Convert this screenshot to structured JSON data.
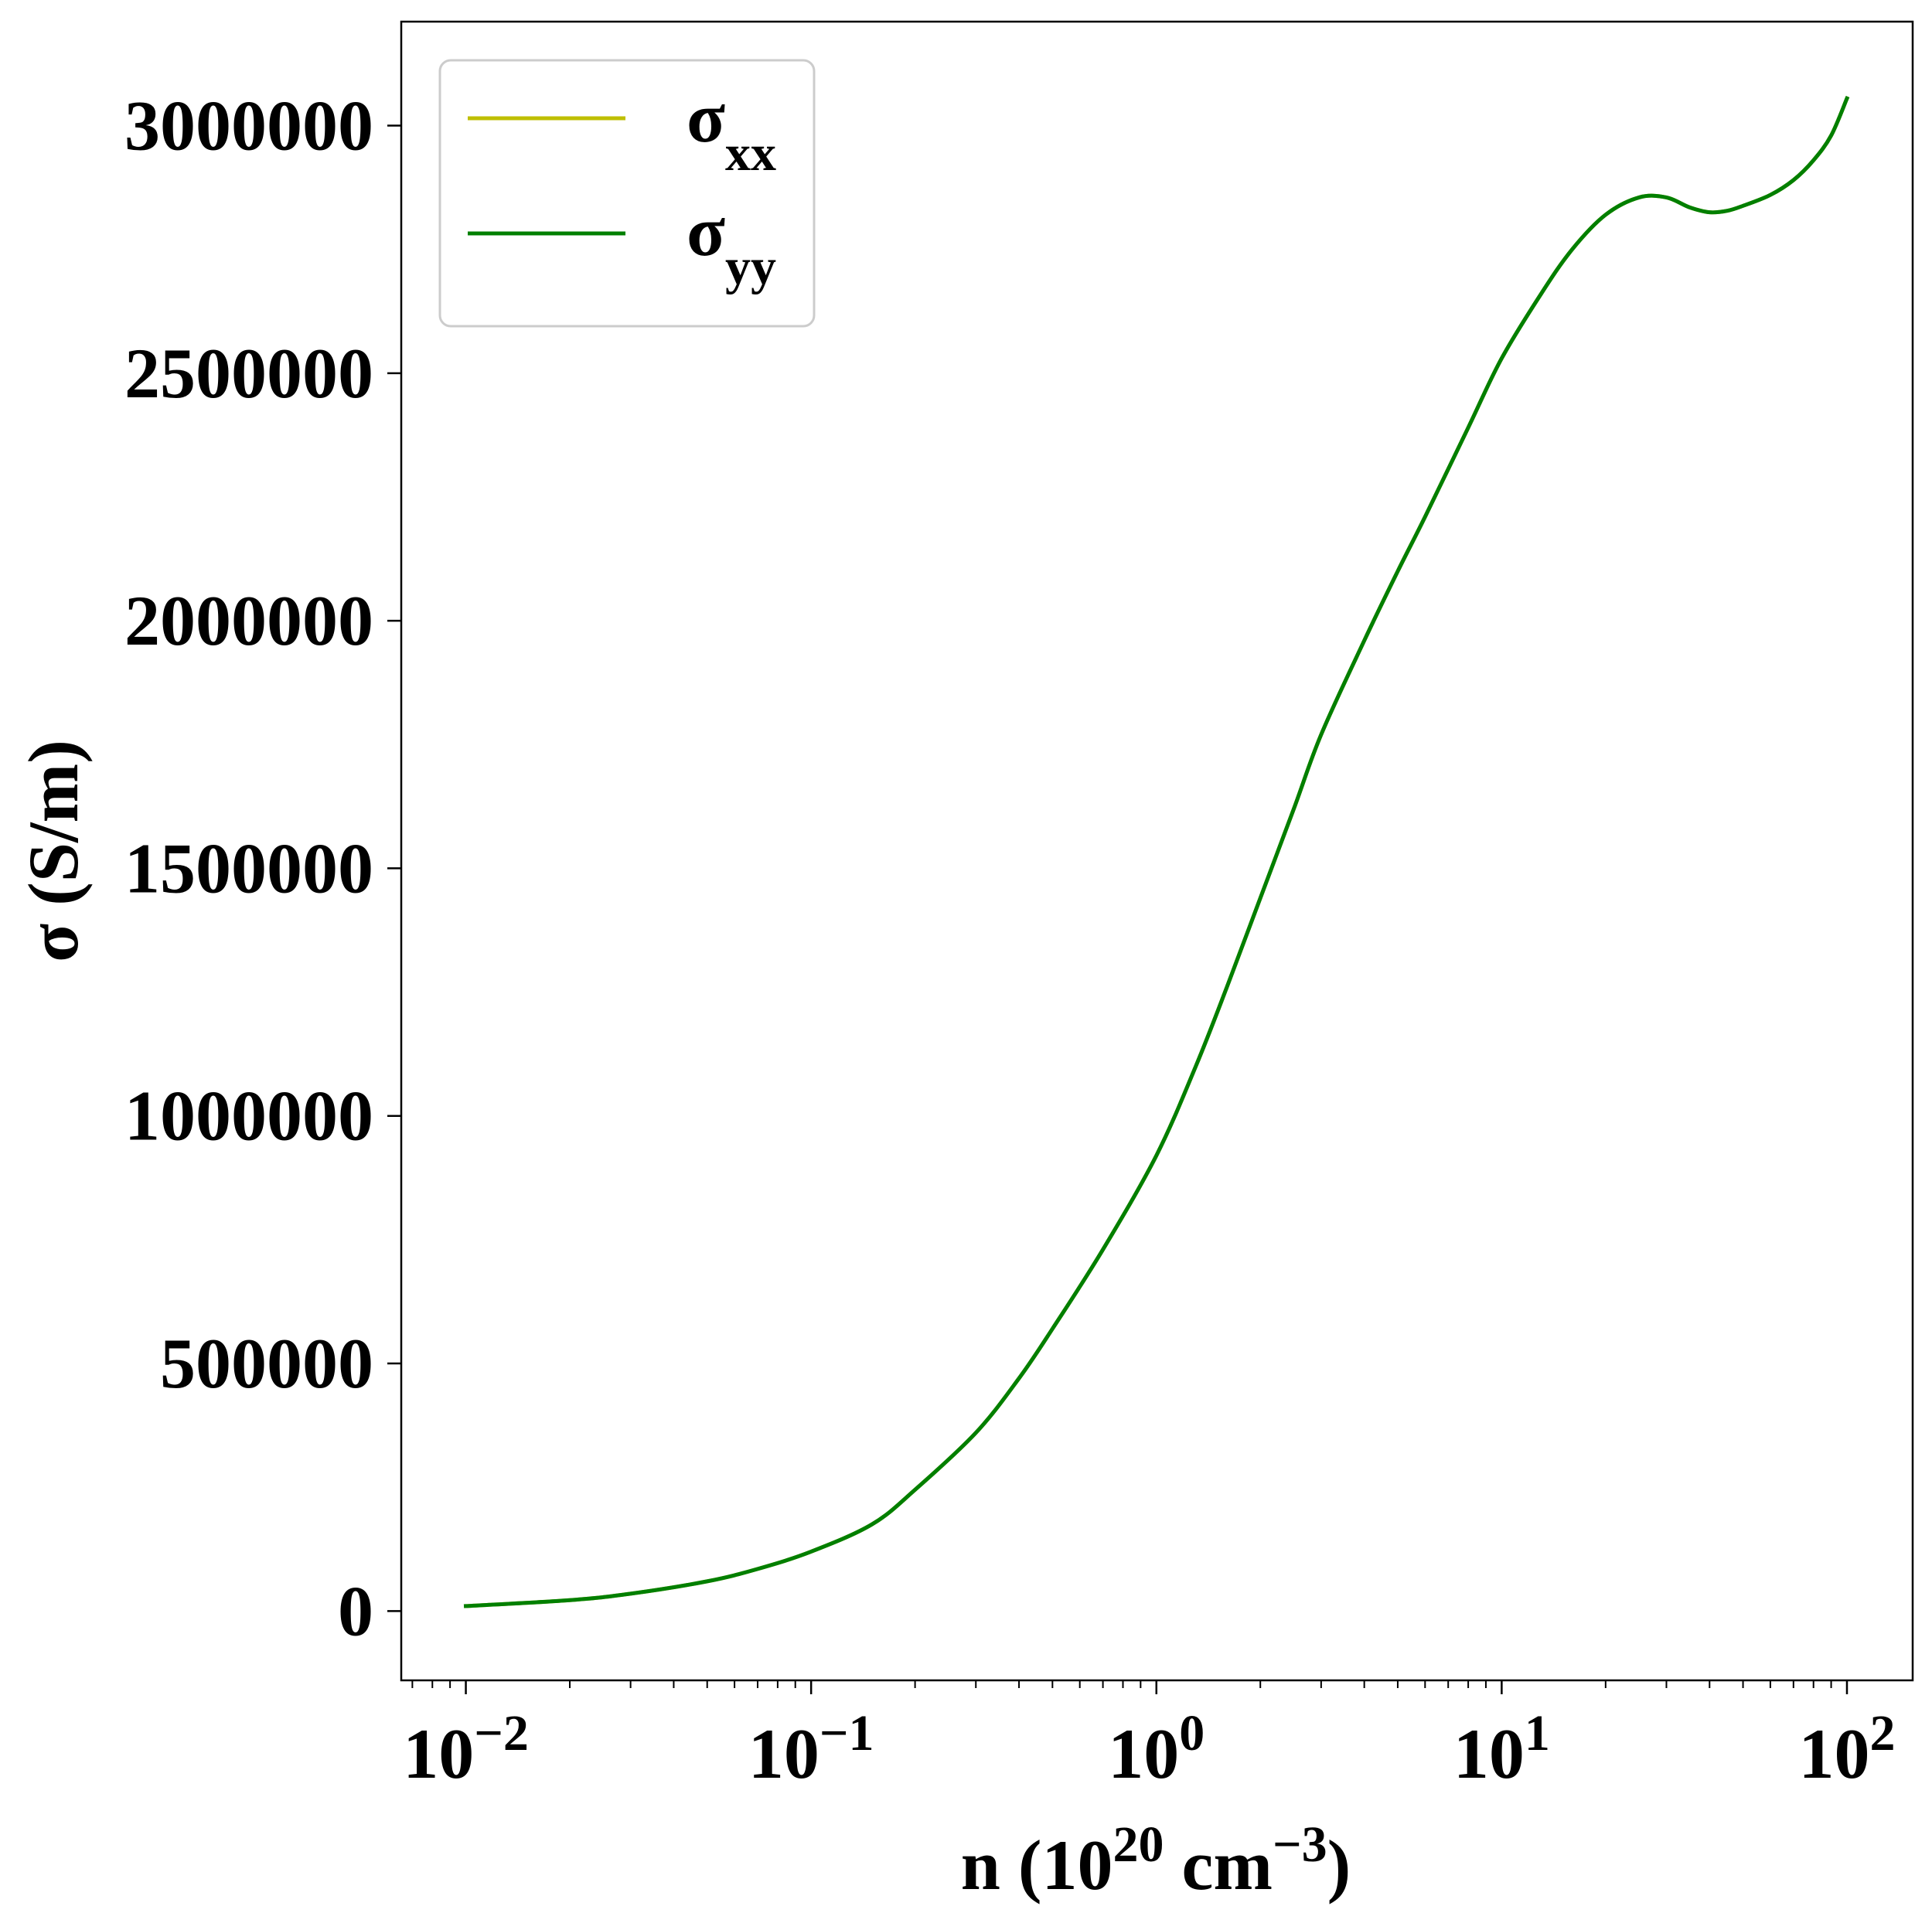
{
  "chart_data": {
    "type": "line",
    "title": "",
    "xlabel": {
      "base": "n (10",
      "exp1": "20",
      "mid": " cm",
      "exp2": "−3",
      "end": ")"
    },
    "ylabel": "σ (S/m)",
    "x_scale": "log",
    "xlim": [
      0.0065,
      155
    ],
    "ylim": [
      -140000,
      3210000
    ],
    "x_ticks": [
      {
        "value": 0.01,
        "base": "10",
        "exp": "−2"
      },
      {
        "value": 0.1,
        "base": "10",
        "exp": "−1"
      },
      {
        "value": 1,
        "base": "10",
        "exp": "0"
      },
      {
        "value": 10,
        "base": "10",
        "exp": "1"
      },
      {
        "value": 100,
        "base": "10",
        "exp": "2"
      }
    ],
    "y_ticks": [
      {
        "value": 0,
        "label": "0"
      },
      {
        "value": 500000,
        "label": "500000"
      },
      {
        "value": 1000000,
        "label": "1000000"
      },
      {
        "value": 1500000,
        "label": "1500000"
      },
      {
        "value": 2000000,
        "label": "2000000"
      },
      {
        "value": 2500000,
        "label": "2500000"
      },
      {
        "value": 3000000,
        "label": "3000000"
      }
    ],
    "grid": false,
    "legend_position": "top-left",
    "series": [
      {
        "name": "σ",
        "name_sub": "xx",
        "color": "#bfbf00",
        "x": [
          0.01,
          0.02,
          0.03,
          0.05,
          0.07,
          0.1,
          0.15,
          0.2,
          0.3,
          0.4,
          0.5,
          0.7,
          1.0,
          1.3,
          1.6,
          2.0,
          2.5,
          3.0,
          4.0,
          5.0,
          6.0,
          8.0,
          10,
          13,
          16,
          20,
          25,
          30,
          35,
          40,
          45,
          50,
          60,
          70,
          80,
          90,
          100
        ],
        "y": [
          10000,
          22000,
          35000,
          60000,
          85000,
          120000,
          175000,
          245000,
          360000,
          470000,
          570000,
          730000,
          920000,
          1100000,
          1260000,
          1440000,
          1620000,
          1770000,
          1960000,
          2100000,
          2210000,
          2390000,
          2530000,
          2660000,
          2750000,
          2820000,
          2855000,
          2855000,
          2835000,
          2825000,
          2828000,
          2838000,
          2860000,
          2890000,
          2930000,
          2980000,
          3055000
        ]
      },
      {
        "name": "σ",
        "name_sub": "yy",
        "color": "#007f00",
        "x": [
          0.01,
          0.02,
          0.03,
          0.05,
          0.07,
          0.1,
          0.15,
          0.2,
          0.3,
          0.4,
          0.5,
          0.7,
          1.0,
          1.3,
          1.6,
          2.0,
          2.5,
          3.0,
          4.0,
          5.0,
          6.0,
          8.0,
          10,
          13,
          16,
          20,
          25,
          30,
          35,
          40,
          45,
          50,
          60,
          70,
          80,
          90,
          100
        ],
        "y": [
          10000,
          22000,
          35000,
          60000,
          85000,
          120000,
          175000,
          245000,
          360000,
          470000,
          570000,
          730000,
          920000,
          1100000,
          1260000,
          1440000,
          1620000,
          1770000,
          1960000,
          2100000,
          2210000,
          2390000,
          2530000,
          2660000,
          2750000,
          2820000,
          2855000,
          2855000,
          2835000,
          2825000,
          2828000,
          2838000,
          2860000,
          2890000,
          2930000,
          2980000,
          3055000
        ]
      }
    ]
  }
}
